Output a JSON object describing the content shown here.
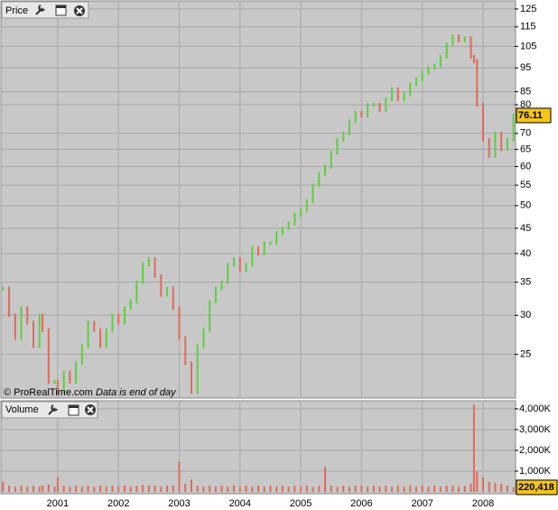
{
  "chart_data": [
    {
      "type": "stock",
      "title": "Price",
      "annotations": [
        "© ProRealTime.com",
        "Data is end of day"
      ],
      "log_scale": true,
      "grid": true,
      "x": [
        2000.1,
        2000.2,
        2000.3,
        2000.4,
        2000.5,
        2000.6,
        2000.7,
        2000.75,
        2000.85,
        2000.95,
        2001.0,
        2001.1,
        2001.2,
        2001.3,
        2001.4,
        2001.5,
        2001.6,
        2001.7,
        2001.8,
        2001.9,
        2002.0,
        2002.1,
        2002.2,
        2002.3,
        2002.4,
        2002.5,
        2002.6,
        2002.7,
        2002.8,
        2002.9,
        2003.0,
        2003.1,
        2003.2,
        2003.3,
        2003.4,
        2003.5,
        2003.6,
        2003.7,
        2003.8,
        2003.9,
        2004.0,
        2004.1,
        2004.2,
        2004.3,
        2004.4,
        2004.5,
        2004.6,
        2004.7,
        2004.8,
        2004.9,
        2005.0,
        2005.1,
        2005.2,
        2005.3,
        2005.4,
        2005.5,
        2005.6,
        2005.7,
        2005.8,
        2005.9,
        2006.0,
        2006.1,
        2006.2,
        2006.3,
        2006.4,
        2006.5,
        2006.6,
        2006.7,
        2006.8,
        2006.9,
        2007.0,
        2007.1,
        2007.2,
        2007.3,
        2007.4,
        2007.5,
        2007.6,
        2007.7,
        2007.8,
        2007.85,
        2007.9,
        2008.0,
        2008.1,
        2008.2,
        2008.3,
        2008.4,
        2008.5
      ],
      "series": [
        {
          "name": "Price",
          "up_color": "#5fcf3f",
          "down_color": "#e06a5c",
          "values": [
            34,
            30,
            27,
            31,
            29,
            26,
            30,
            28,
            22,
            22,
            21,
            23,
            22,
            24,
            26,
            29,
            28,
            26,
            28,
            30,
            29,
            31,
            32,
            35,
            38,
            39,
            36,
            33,
            34,
            31,
            27,
            24,
            21,
            26,
            28,
            32,
            34,
            35,
            38,
            39,
            37,
            38,
            41,
            40,
            42,
            42,
            44,
            45,
            46,
            48,
            49,
            51,
            55,
            58,
            60,
            64,
            68,
            70,
            74,
            77,
            76,
            80,
            80,
            78,
            82,
            86,
            82,
            84,
            88,
            90,
            93,
            95,
            96,
            100,
            106,
            110,
            108,
            109,
            100,
            98,
            80,
            68,
            63,
            70,
            65,
            68,
            76.11
          ]
        }
      ],
      "last_price": 76.11,
      "last_color": "#f5c518",
      "xlim": [
        2000.08,
        2008.52
      ],
      "ylim": [
        20.4,
        128.7
      ],
      "yticks": [
        25,
        30,
        35,
        40,
        45,
        50,
        55,
        60,
        65,
        70,
        80,
        85,
        95,
        105,
        115,
        125
      ]
    },
    {
      "type": "bar",
      "title": "Volume",
      "color": "#e06a5c",
      "x": [
        2000.1,
        2000.2,
        2000.3,
        2000.4,
        2000.5,
        2000.6,
        2000.7,
        2000.75,
        2000.85,
        2000.95,
        2001.0,
        2001.1,
        2001.2,
        2001.3,
        2001.4,
        2001.5,
        2001.6,
        2001.7,
        2001.8,
        2001.9,
        2002.0,
        2002.1,
        2002.2,
        2002.3,
        2002.4,
        2002.5,
        2002.6,
        2002.7,
        2002.8,
        2002.9,
        2003.0,
        2003.1,
        2003.2,
        2003.3,
        2003.4,
        2003.5,
        2003.6,
        2003.7,
        2003.8,
        2003.9,
        2004.0,
        2004.1,
        2004.2,
        2004.3,
        2004.4,
        2004.5,
        2004.6,
        2004.7,
        2004.8,
        2004.9,
        2005.0,
        2005.1,
        2005.2,
        2005.3,
        2005.4,
        2005.5,
        2005.6,
        2005.7,
        2005.8,
        2005.9,
        2006.0,
        2006.1,
        2006.2,
        2006.3,
        2006.4,
        2006.5,
        2006.6,
        2006.7,
        2006.8,
        2006.9,
        2007.0,
        2007.1,
        2007.2,
        2007.3,
        2007.4,
        2007.5,
        2007.6,
        2007.7,
        2007.8,
        2007.85,
        2007.9,
        2008.0,
        2008.1,
        2008.2,
        2008.3,
        2008.4,
        2008.5
      ],
      "values": [
        500000,
        300000,
        250000,
        300000,
        250000,
        300000,
        250000,
        300000,
        350000,
        250000,
        700000,
        300000,
        250000,
        300000,
        250000,
        300000,
        250000,
        300000,
        250000,
        300000,
        250000,
        300000,
        250000,
        300000,
        350000,
        300000,
        300000,
        250000,
        300000,
        300000,
        1450000,
        400000,
        600000,
        300000,
        250000,
        300000,
        250000,
        300000,
        250000,
        300000,
        250000,
        300000,
        250000,
        300000,
        250000,
        300000,
        250000,
        300000,
        250000,
        300000,
        250000,
        300000,
        250000,
        300000,
        1200000,
        300000,
        250000,
        300000,
        250000,
        300000,
        300000,
        250000,
        300000,
        250000,
        300000,
        250000,
        300000,
        250000,
        300000,
        250000,
        300000,
        250000,
        300000,
        250000,
        300000,
        300000,
        250000,
        300000,
        400000,
        4200000,
        1000000,
        700000,
        500000,
        450000,
        400000,
        300000,
        220418
      ],
      "last_volume": {
        "value": 220418,
        "label": "220,418"
      },
      "last_color": "#f5c518",
      "xlim": [
        2000.08,
        2008.52
      ],
      "ylim": [
        0,
        4300000
      ],
      "yticks": [
        {
          "value": 1000000,
          "label": "1,000K"
        },
        {
          "value": 2000000,
          "label": "2,000K"
        },
        {
          "value": 3000000,
          "label": "3,000K"
        },
        {
          "value": 4000000,
          "label": "4,000K"
        }
      ],
      "xticks": [
        2001,
        2002,
        2003,
        2004,
        2005,
        2006,
        2007,
        2008
      ]
    }
  ]
}
